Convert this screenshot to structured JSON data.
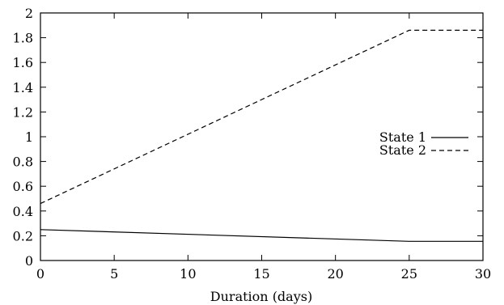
{
  "chart_data": {
    "type": "line",
    "title": "",
    "xlabel": "Duration (days)",
    "ylabel": "",
    "xlim": [
      0,
      30
    ],
    "ylim": [
      0,
      2
    ],
    "x_ticks": [
      0,
      5,
      10,
      15,
      20,
      25,
      30
    ],
    "x_tick_labels": [
      "0",
      "5",
      "10",
      "15",
      "20",
      "25",
      "30"
    ],
    "y_ticks": [
      0,
      0.2,
      0.4,
      0.6,
      0.8,
      1,
      1.2,
      1.4,
      1.6,
      1.8,
      2
    ],
    "y_tick_labels": [
      "0",
      "0.2",
      "0.4",
      "0.6",
      "0.8",
      "1",
      "1.2",
      "1.4",
      "1.6",
      "1.8",
      "2"
    ],
    "grid": false,
    "legend_position": "right",
    "series": [
      {
        "name": "State 1",
        "line_style": "solid",
        "color": "#000000",
        "x": [
          0,
          25,
          30
        ],
        "y": [
          0.25,
          0.155,
          0.155
        ]
      },
      {
        "name": "State 2",
        "line_style": "dashed",
        "color": "#000000",
        "x": [
          0,
          25,
          30
        ],
        "y": [
          0.46,
          1.86,
          1.86
        ]
      }
    ]
  }
}
